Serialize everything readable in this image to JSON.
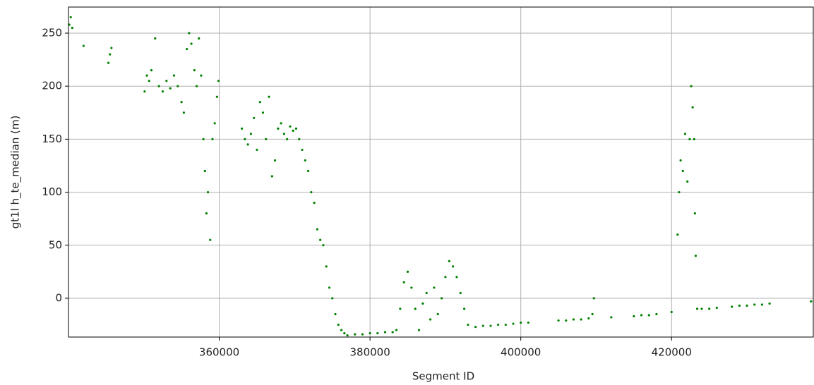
{
  "chart_data": {
    "type": "scatter",
    "xlabel": "Segment ID",
    "ylabel": "gt1l h_te_median (m)",
    "color": "#008000",
    "grid": true,
    "xlim": [
      340000,
      438800
    ],
    "ylim": [
      -36.6,
      274.6
    ],
    "xticks": [
      360000,
      380000,
      400000,
      420000
    ],
    "yticks": [
      0,
      50,
      100,
      150,
      200,
      250
    ],
    "x": [
      340100,
      340300,
      340500,
      342000,
      345300,
      345500,
      345700,
      350100,
      350400,
      350700,
      351000,
      351500,
      352000,
      352500,
      353000,
      353500,
      354000,
      354500,
      355000,
      355300,
      355700,
      356000,
      356300,
      356700,
      357000,
      357300,
      357600,
      357900,
      358100,
      358300,
      358500,
      358800,
      359100,
      359400,
      359700,
      359900,
      363000,
      363400,
      363800,
      364200,
      364600,
      365000,
      365400,
      365800,
      366200,
      366600,
      367000,
      367400,
      367800,
      368200,
      368600,
      369000,
      369400,
      369800,
      370200,
      370600,
      371000,
      371400,
      371800,
      372200,
      372600,
      373000,
      373400,
      373800,
      374200,
      374600,
      375000,
      375400,
      375800,
      376200,
      376600,
      377000,
      378000,
      379000,
      380000,
      381000,
      382000,
      383000,
      383500,
      384000,
      384500,
      385000,
      385500,
      386000,
      386500,
      387000,
      387500,
      388000,
      388500,
      389000,
      389500,
      390000,
      390500,
      391000,
      391500,
      392000,
      392500,
      393000,
      394000,
      395000,
      396000,
      397000,
      398000,
      399000,
      400000,
      401000,
      405000,
      406000,
      407000,
      408000,
      409000,
      409500,
      409700,
      412000,
      415000,
      416000,
      417000,
      418000,
      420000,
      420800,
      421000,
      421200,
      421500,
      421800,
      422100,
      422400,
      422600,
      422800,
      423000,
      423100,
      423200,
      423400,
      424000,
      425000,
      426000,
      428000,
      429000,
      430000,
      431000,
      432000,
      433000,
      438500
    ],
    "values": [
      258,
      265,
      255,
      238,
      222,
      230,
      236,
      195,
      210,
      205,
      215,
      245,
      200,
      195,
      205,
      198,
      210,
      200,
      185,
      175,
      235,
      250,
      240,
      215,
      200,
      245,
      210,
      150,
      120,
      80,
      100,
      55,
      150,
      165,
      190,
      205,
      160,
      150,
      145,
      155,
      170,
      140,
      185,
      175,
      150,
      190,
      115,
      130,
      160,
      165,
      155,
      150,
      162,
      158,
      160,
      150,
      140,
      130,
      120,
      100,
      90,
      65,
      55,
      50,
      30,
      10,
      0,
      -15,
      -25,
      -30,
      -33,
      -35,
      -34,
      -34,
      -33,
      -33,
      -32,
      -32,
      -30,
      -10,
      15,
      25,
      10,
      -10,
      -30,
      -5,
      5,
      -20,
      10,
      -15,
      0,
      20,
      35,
      30,
      20,
      5,
      -10,
      -25,
      -27,
      -26,
      -26,
      -25,
      -25,
      -24,
      -23,
      -23,
      -21,
      -21,
      -20,
      -20,
      -19,
      -15,
      0,
      -18,
      -17,
      -16,
      -16,
      -15,
      -13,
      60,
      100,
      130,
      120,
      155,
      110,
      150,
      200,
      180,
      150,
      80,
      40,
      -10,
      -10,
      -10,
      -9,
      -8,
      -7,
      -7,
      -6,
      -6,
      -5,
      -3
    ]
  }
}
